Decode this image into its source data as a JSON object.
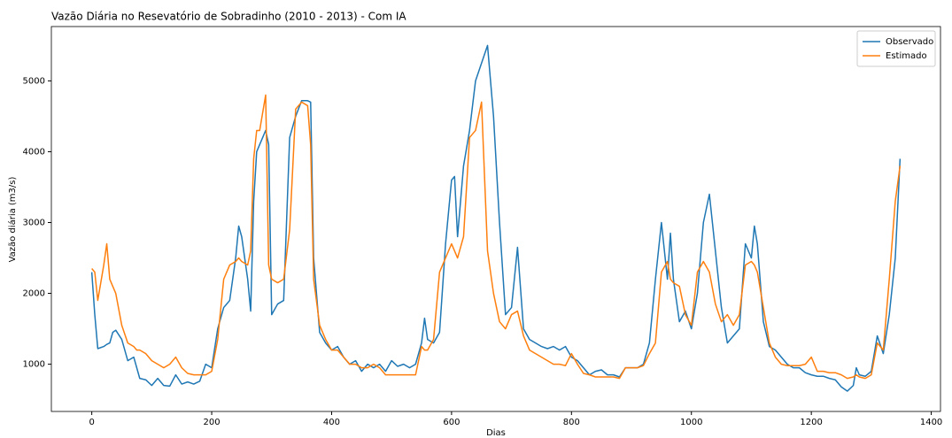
{
  "chart_data": {
    "type": "line",
    "title": "Vazão Diária no Resevatório de Sobradinho (2010 - 2013) - Com IA",
    "x_label": "Dias",
    "y_label": "Vazão diária (m3/s)",
    "xlim": [
      -67.4,
      1415.4
    ],
    "ylim": [
      333,
      5767
    ],
    "xticks": [
      0,
      200,
      400,
      600,
      800,
      1000,
      1200,
      1400
    ],
    "yticks": [
      1000,
      2000,
      3000,
      4000,
      5000
    ],
    "grid": false,
    "legend": "upper right",
    "x": [
      0,
      5,
      10,
      20,
      25,
      30,
      35,
      40,
      50,
      60,
      70,
      75,
      80,
      90,
      100,
      110,
      120,
      130,
      140,
      150,
      160,
      170,
      180,
      190,
      200,
      210,
      220,
      230,
      240,
      245,
      250,
      260,
      265,
      270,
      275,
      280,
      290,
      295,
      300,
      310,
      320,
      330,
      340,
      350,
      360,
      365,
      370,
      380,
      390,
      400,
      410,
      420,
      430,
      440,
      450,
      460,
      470,
      480,
      490,
      500,
      510,
      520,
      530,
      540,
      550,
      555,
      560,
      570,
      580,
      590,
      600,
      605,
      610,
      620,
      630,
      640,
      650,
      660,
      670,
      680,
      690,
      700,
      710,
      720,
      730,
      740,
      750,
      760,
      770,
      780,
      790,
      800,
      810,
      820,
      830,
      840,
      850,
      860,
      870,
      880,
      890,
      900,
      910,
      920,
      930,
      940,
      950,
      960,
      965,
      970,
      980,
      990,
      1000,
      1010,
      1020,
      1030,
      1040,
      1050,
      1060,
      1070,
      1080,
      1090,
      1100,
      1105,
      1110,
      1120,
      1130,
      1140,
      1150,
      1160,
      1170,
      1180,
      1190,
      1200,
      1210,
      1220,
      1230,
      1240,
      1250,
      1260,
      1270,
      1275,
      1280,
      1290,
      1300,
      1310,
      1320,
      1330,
      1340,
      1348
    ],
    "series": [
      {
        "name": "Observado",
        "color": "#1f77b4",
        "values": [
          2300,
          1700,
          1220,
          1250,
          1280,
          1300,
          1450,
          1480,
          1350,
          1050,
          1100,
          950,
          800,
          780,
          700,
          800,
          700,
          690,
          850,
          720,
          750,
          720,
          760,
          1000,
          950,
          1500,
          1800,
          1900,
          2500,
          2950,
          2800,
          2200,
          1750,
          3300,
          4000,
          4100,
          4300,
          4100,
          1700,
          1850,
          1900,
          4200,
          4500,
          4720,
          4720,
          4700,
          2500,
          1450,
          1300,
          1200,
          1250,
          1100,
          1000,
          1050,
          900,
          1000,
          950,
          1000,
          900,
          1050,
          970,
          1000,
          950,
          1000,
          1300,
          1650,
          1350,
          1300,
          1450,
          2700,
          3600,
          3650,
          2800,
          3800,
          4300,
          5000,
          5250,
          5500,
          4500,
          3000,
          1700,
          1800,
          2650,
          1500,
          1350,
          1300,
          1250,
          1220,
          1250,
          1200,
          1250,
          1100,
          1050,
          950,
          850,
          900,
          920,
          850,
          850,
          820,
          950,
          950,
          950,
          1000,
          1300,
          2200,
          3000,
          2200,
          2850,
          2200,
          1600,
          1750,
          1500,
          2000,
          3000,
          3400,
          2600,
          1800,
          1300,
          1400,
          1500,
          2700,
          2500,
          2950,
          2700,
          1600,
          1250,
          1200,
          1100,
          1000,
          950,
          950,
          880,
          850,
          830,
          830,
          800,
          780,
          680,
          620,
          700,
          950,
          850,
          830,
          900,
          1400,
          1150,
          1700,
          2500,
          3900
        ]
      },
      {
        "name": "Estimado",
        "color": "#ff7f0e",
        "values": [
          2350,
          2300,
          1900,
          2400,
          2700,
          2200,
          2100,
          2000,
          1550,
          1300,
          1250,
          1200,
          1200,
          1150,
          1050,
          1000,
          950,
          1000,
          1100,
          950,
          870,
          850,
          850,
          850,
          900,
          1350,
          2200,
          2400,
          2450,
          2500,
          2450,
          2400,
          2600,
          3900,
          4300,
          4300,
          4800,
          2400,
          2200,
          2150,
          2200,
          2900,
          4600,
          4700,
          4650,
          4100,
          2200,
          1550,
          1350,
          1200,
          1200,
          1100,
          1000,
          1000,
          950,
          950,
          1000,
          950,
          850,
          850,
          850,
          850,
          850,
          850,
          1250,
          1200,
          1200,
          1350,
          2300,
          2500,
          2700,
          2600,
          2500,
          2800,
          4200,
          4300,
          4700,
          2600,
          2000,
          1600,
          1500,
          1700,
          1750,
          1400,
          1200,
          1150,
          1100,
          1050,
          1000,
          1000,
          980,
          1150,
          1000,
          870,
          850,
          820,
          820,
          820,
          820,
          800,
          950,
          950,
          950,
          980,
          1150,
          1300,
          2300,
          2450,
          2200,
          2150,
          2100,
          1700,
          1550,
          2300,
          2450,
          2300,
          1850,
          1600,
          1700,
          1550,
          1700,
          2400,
          2450,
          2400,
          2300,
          1800,
          1300,
          1100,
          1000,
          980,
          980,
          980,
          1000,
          1100,
          900,
          900,
          880,
          880,
          850,
          800,
          820,
          850,
          820,
          800,
          850,
          1300,
          1200,
          2200,
          3300,
          3800
        ]
      }
    ]
  }
}
